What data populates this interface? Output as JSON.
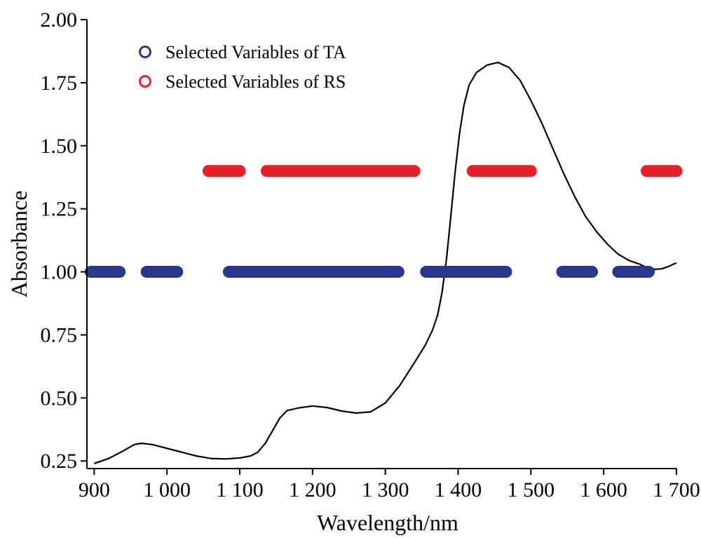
{
  "chart_data": {
    "type": "line",
    "title": "",
    "xlabel": "Wavelength/nm",
    "ylabel": "Absorbance",
    "xlim": [
      890,
      1700
    ],
    "ylim": [
      0.22,
      2.0
    ],
    "x_ticks": [
      900,
      1000,
      1100,
      1200,
      1300,
      1400,
      1500,
      1600,
      1700
    ],
    "x_tick_labels": [
      "900",
      "1 000",
      "1 100",
      "1 200",
      "1 300",
      "1 400",
      "1 500",
      "1 600",
      "1 700"
    ],
    "y_ticks": [
      0.25,
      0.5,
      0.75,
      1.0,
      1.25,
      1.5,
      1.75,
      2.0
    ],
    "y_tick_labels": [
      "0.25",
      "0.50",
      "0.75",
      "1.00",
      "1.25",
      "1.50",
      "1.75",
      "2.00"
    ],
    "grid": false,
    "legend_position": "top-left",
    "spectrum": {
      "color": "#000000",
      "points": [
        [
          900,
          0.24
        ],
        [
          920,
          0.26
        ],
        [
          940,
          0.29
        ],
        [
          955,
          0.315
        ],
        [
          965,
          0.32
        ],
        [
          980,
          0.315
        ],
        [
          1000,
          0.3
        ],
        [
          1020,
          0.285
        ],
        [
          1040,
          0.27
        ],
        [
          1060,
          0.26
        ],
        [
          1080,
          0.258
        ],
        [
          1100,
          0.262
        ],
        [
          1115,
          0.27
        ],
        [
          1125,
          0.285
        ],
        [
          1135,
          0.32
        ],
        [
          1145,
          0.37
        ],
        [
          1155,
          0.42
        ],
        [
          1165,
          0.45
        ],
        [
          1180,
          0.46
        ],
        [
          1200,
          0.468
        ],
        [
          1220,
          0.462
        ],
        [
          1240,
          0.448
        ],
        [
          1260,
          0.44
        ],
        [
          1280,
          0.445
        ],
        [
          1300,
          0.48
        ],
        [
          1320,
          0.55
        ],
        [
          1340,
          0.64
        ],
        [
          1355,
          0.71
        ],
        [
          1365,
          0.77
        ],
        [
          1372,
          0.83
        ],
        [
          1378,
          0.92
        ],
        [
          1384,
          1.05
        ],
        [
          1390,
          1.22
        ],
        [
          1396,
          1.4
        ],
        [
          1402,
          1.55
        ],
        [
          1408,
          1.66
        ],
        [
          1415,
          1.74
        ],
        [
          1425,
          1.79
        ],
        [
          1440,
          1.82
        ],
        [
          1455,
          1.83
        ],
        [
          1470,
          1.81
        ],
        [
          1485,
          1.76
        ],
        [
          1500,
          1.68
        ],
        [
          1515,
          1.59
        ],
        [
          1530,
          1.49
        ],
        [
          1545,
          1.39
        ],
        [
          1560,
          1.3
        ],
        [
          1575,
          1.22
        ],
        [
          1590,
          1.16
        ],
        [
          1605,
          1.11
        ],
        [
          1620,
          1.07
        ],
        [
          1635,
          1.045
        ],
        [
          1650,
          1.03
        ],
        [
          1660,
          1.015
        ],
        [
          1670,
          1.01
        ],
        [
          1680,
          1.012
        ],
        [
          1690,
          1.022
        ],
        [
          1695,
          1.03
        ],
        [
          1700,
          1.035
        ]
      ]
    },
    "series": [
      {
        "name": "Selected Variables of TA",
        "color": "#2a3590",
        "y": 1.0,
        "ranges": [
          [
            895,
            935
          ],
          [
            972,
            1014
          ],
          [
            988,
            986
          ],
          [
            1085,
            1318
          ],
          [
            1356,
            1466
          ],
          [
            1543,
            1584
          ],
          [
            1620,
            1662
          ]
        ]
      },
      {
        "name": "Selected Variables of RS",
        "color": "#e8202a",
        "y": 1.4,
        "ranges": [
          [
            1057,
            1100
          ],
          [
            1137,
            1340
          ],
          [
            1420,
            1500
          ],
          [
            1659,
            1700
          ]
        ]
      }
    ]
  }
}
